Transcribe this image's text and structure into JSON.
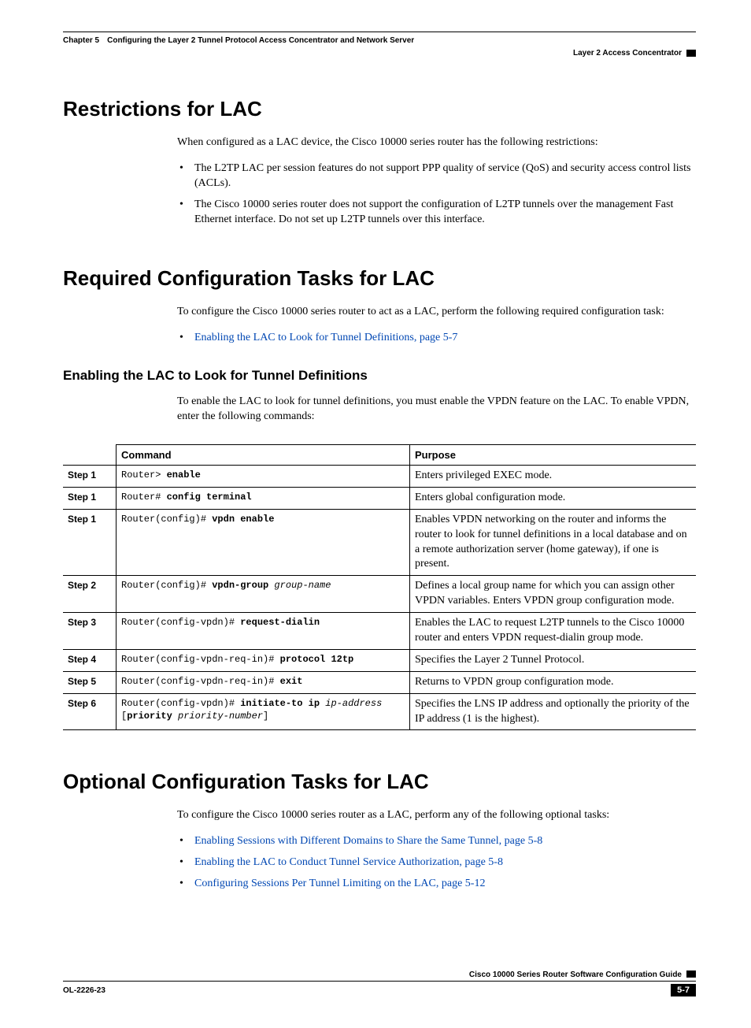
{
  "header": {
    "left": "Chapter 5 Configuring the Layer 2 Tunnel Protocol Access Concentrator and Network Server",
    "right": "Layer 2 Access Concentrator"
  },
  "sections": {
    "restrictions": {
      "title": "Restrictions for LAC",
      "intro": "When configured as a LAC device, the Cisco 10000 series router has the following restrictions:",
      "bullets": [
        "The L2TP LAC per session features do not support PPP quality of service (QoS) and security access control lists (ACLs).",
        "The Cisco 10000 series router does not support the configuration of L2TP tunnels over the management Fast Ethernet interface. Do not set up L2TP tunnels over this interface."
      ]
    },
    "required": {
      "title": "Required Configuration Tasks for LAC",
      "intro": "To configure the Cisco 10000 series router to act as a LAC, perform the following required configuration task:",
      "link": "Enabling the LAC to Look for Tunnel Definitions, page 5-7",
      "subheading": "Enabling the LAC to Look for Tunnel Definitions",
      "subintro": "To enable the LAC to look for tunnel definitions, you must enable the VPDN feature on the LAC. To enable VPDN, enter the following commands:"
    },
    "optional": {
      "title": "Optional Configuration Tasks for LAC",
      "intro": "To configure the Cisco 10000 series router as a LAC, perform any of the following optional tasks:",
      "links": [
        "Enabling Sessions with Different Domains to Share the Same Tunnel, page 5-8",
        "Enabling the LAC to Conduct Tunnel Service Authorization, page 5-8",
        "Configuring Sessions Per Tunnel Limiting on the LAC, page 5-12"
      ]
    }
  },
  "table": {
    "columns": [
      "",
      "Command",
      "Purpose"
    ],
    "rows": [
      {
        "step": "Step 1",
        "cmd_prompt": "Router> ",
        "cmd_bold": "enable",
        "cmd_tail": "",
        "purpose": "Enters privileged EXEC mode."
      },
      {
        "step": "Step 1",
        "cmd_prompt": "Router# ",
        "cmd_bold": "config terminal",
        "cmd_tail": "",
        "purpose": "Enters global configuration mode."
      },
      {
        "step": "Step 1",
        "cmd_prompt": "Router(config)# ",
        "cmd_bold": "vpdn enable",
        "cmd_tail": "",
        "purpose": "Enables VPDN networking on the router and informs the router to look for tunnel definitions in a local database and on a remote authorization server (home gateway), if one is present."
      },
      {
        "step": "Step 2",
        "cmd_prompt": "Router(config)# ",
        "cmd_bold": "vpdn-group",
        "cmd_tail_italic": " group-name",
        "purpose": "Defines a local group name for which you can assign other VPDN variables. Enters VPDN group configuration mode."
      },
      {
        "step": "Step 3",
        "cmd_prompt": "Router(config-vpdn)# ",
        "cmd_bold": "request-dialin",
        "cmd_tail": "",
        "purpose": "Enables the LAC to request L2TP tunnels to the Cisco 10000 router and enters VPDN request-dialin group mode."
      },
      {
        "step": "Step 4",
        "cmd_prompt": "Router(config-vpdn-req-in)# ",
        "cmd_bold": "protocol 12tp",
        "cmd_tail": "",
        "purpose": "Specifies the Layer 2 Tunnel Protocol."
      },
      {
        "step": "Step 5",
        "cmd_prompt": "Router(config-vpdn-req-in)# ",
        "cmd_bold": "exit",
        "cmd_tail": "",
        "purpose": "Returns to VPDN group configuration mode."
      },
      {
        "step": "Step 6",
        "cmd_line2_pre": "[",
        "cmd_line2_bold": "priority",
        "cmd_line2_italic": " priority-number",
        "cmd_line2_post": "]",
        "cmd_prompt": "Router(config-vpdn)# ",
        "cmd_bold": "initiate-to ip",
        "cmd_tail_italic": " ip-address",
        "purpose": "Specifies the LNS IP address and optionally the priority of the IP address (1 is the highest)."
      }
    ]
  },
  "footer": {
    "title": "Cisco 10000 Series Router Software Configuration Guide",
    "docid": "OL-2226-23",
    "page": "5-7"
  }
}
